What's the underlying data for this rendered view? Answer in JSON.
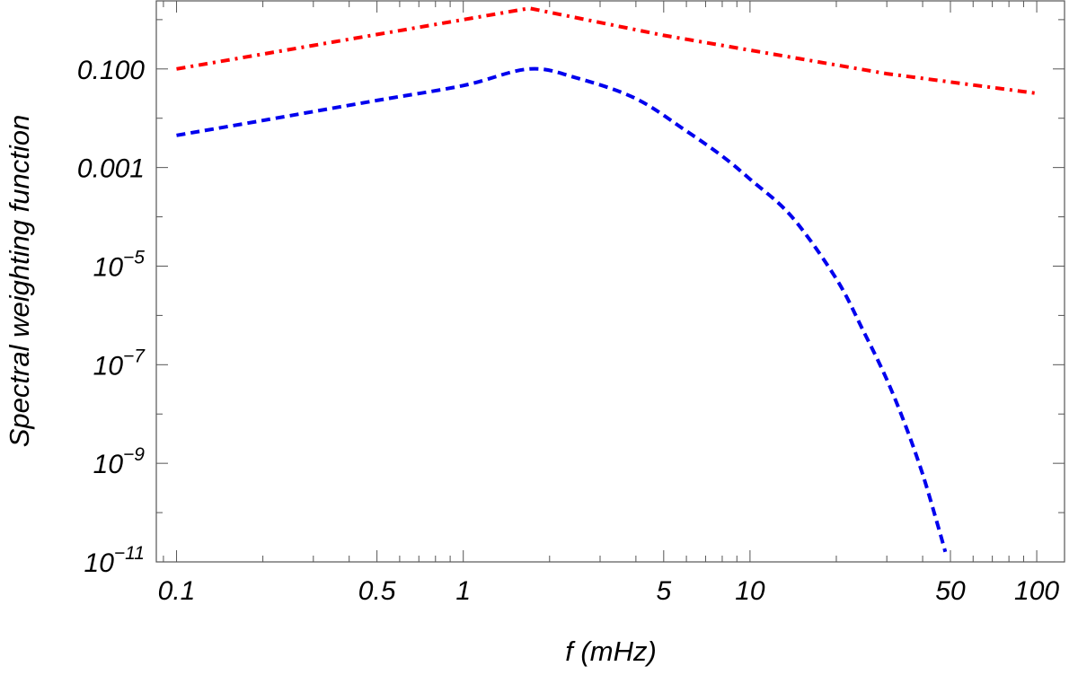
{
  "chart_data": {
    "type": "line",
    "title": "",
    "xlabel": "f (mHz)",
    "ylabel": "Spectral weighting function",
    "x_scale": "log",
    "y_scale": "log",
    "xlim": [
      0.085,
      125
    ],
    "ylim": [
      1e-11,
      2.4
    ],
    "grid": false,
    "legend": "none",
    "x_ticks": [
      {
        "value": 0.1,
        "label": "0.1"
      },
      {
        "value": 0.5,
        "label": "0.5"
      },
      {
        "value": 1,
        "label": "1"
      },
      {
        "value": 5,
        "label": "5"
      },
      {
        "value": 10,
        "label": "10"
      },
      {
        "value": 50,
        "label": "50"
      },
      {
        "value": 100,
        "label": "100"
      }
    ],
    "y_ticks": [
      {
        "value": 0.1,
        "mantissa": "0.100",
        "exp": ""
      },
      {
        "value": 0.001,
        "mantissa": "0.001",
        "exp": ""
      },
      {
        "value": 1e-05,
        "mantissa": "10",
        "exp": "−5"
      },
      {
        "value": 1e-07,
        "mantissa": "10",
        "exp": "−7"
      },
      {
        "value": 1e-09,
        "mantissa": "10",
        "exp": "−9"
      },
      {
        "value": 1e-11,
        "mantissa": "10",
        "exp": "−11"
      }
    ],
    "series": [
      {
        "color": "#ff0000",
        "dash": "dash-dot",
        "x": [
          0.1,
          0.3,
          1.0,
          1.7,
          5,
          10,
          30,
          100
        ],
        "y": [
          0.1,
          0.3,
          1.0,
          1.7,
          0.48,
          0.24,
          0.08,
          0.032
        ]
      },
      {
        "color": "#0000ee",
        "dash": "dashed",
        "x": [
          0.1,
          0.2,
          0.5,
          1.0,
          1.7,
          2.5,
          4,
          6,
          8,
          10,
          14,
          20,
          25,
          30,
          35,
          40,
          45,
          48
        ],
        "y": [
          0.0045,
          0.009,
          0.023,
          0.046,
          0.1,
          0.065,
          0.025,
          0.0055,
          0.0017,
          0.00058,
          0.0001,
          5.5e-06,
          4.5e-07,
          5e-08,
          5.5e-09,
          6e-10,
          6e-11,
          1.6e-11
        ]
      }
    ]
  }
}
